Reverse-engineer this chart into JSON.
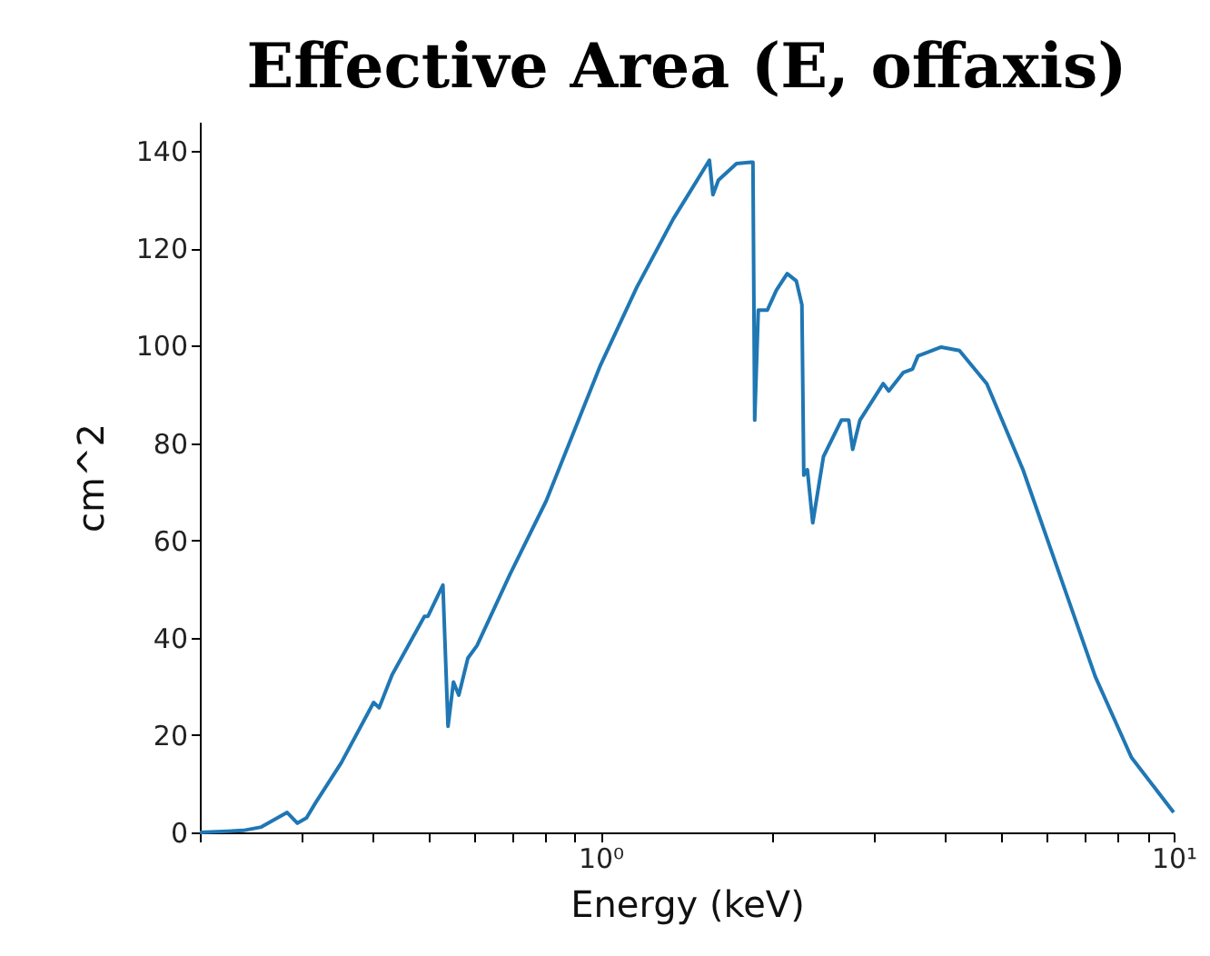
{
  "chart_data": {
    "type": "line",
    "title": "Effective Area (E, offaxis)",
    "xlabel": "Energy (keV)",
    "ylabel": "cm^2",
    "log": "x",
    "grid": false,
    "xlim": [
      0.2,
      10
    ],
    "xticks": [
      {
        "value": 0.2,
        "label": null
      },
      {
        "value": 0.3,
        "label": null
      },
      {
        "value": 0.4,
        "label": null
      },
      {
        "value": 0.5,
        "label": null
      },
      {
        "value": 0.6,
        "label": null
      },
      {
        "value": 0.7,
        "label": null
      },
      {
        "value": 0.8,
        "label": null
      },
      {
        "value": 0.9,
        "label": null
      },
      {
        "value": 1,
        "label": "10⁰"
      },
      {
        "value": 2,
        "label": null
      },
      {
        "value": 3,
        "label": null
      },
      {
        "value": 4,
        "label": null
      },
      {
        "value": 5,
        "label": null
      },
      {
        "value": 6,
        "label": null
      },
      {
        "value": 7,
        "label": null
      },
      {
        "value": 8,
        "label": null
      },
      {
        "value": 9,
        "label": null
      },
      {
        "value": 10,
        "label": "10¹"
      }
    ],
    "ylim": [
      0,
      146
    ],
    "yticks": [
      0,
      20,
      40,
      60,
      80,
      100,
      120,
      140
    ],
    "series": [
      {
        "color": "#1f77b4",
        "x": [
          0.2,
          0.238,
          0.256,
          0.284,
          0.296,
          0.307,
          0.318,
          0.353,
          0.402,
          0.411,
          0.433,
          0.493,
          0.5,
          0.531,
          0.542,
          0.554,
          0.566,
          0.587,
          0.609,
          0.695,
          0.804,
          1.0,
          1.157,
          1.339,
          1.549,
          1.571,
          1.606,
          1.727,
          1.832,
          1.845,
          1.858,
          1.885,
          1.955,
          2.027,
          2.117,
          2.196,
          2.246,
          2.263,
          2.296,
          2.346,
          2.449,
          2.632,
          2.711,
          2.754,
          2.836,
          3.114,
          3.184,
          3.377,
          3.503,
          3.58,
          3.93,
          4.229,
          4.72,
          5.46,
          6.32,
          7.3,
          8.44,
          10
        ],
        "values": [
          0,
          0.4,
          1.1,
          4.1,
          1.9,
          3,
          6,
          14.3,
          26.7,
          25.6,
          32.4,
          44.4,
          44.4,
          50.8,
          21.8,
          30.9,
          28.2,
          35.8,
          38.4,
          53,
          68.1,
          96,
          112,
          126,
          138.1,
          131,
          134,
          137.4,
          137.7,
          137.7,
          84.7,
          107.3,
          107.3,
          111.4,
          114.8,
          113.3,
          108.4,
          73.4,
          74.5,
          63.6,
          77.2,
          84.7,
          84.7,
          78.7,
          84.7,
          92.2,
          90.7,
          94.5,
          95.2,
          97.9,
          99.7,
          99,
          92.2,
          74.5,
          53.1,
          32,
          15.4,
          4.1
        ]
      }
    ]
  }
}
